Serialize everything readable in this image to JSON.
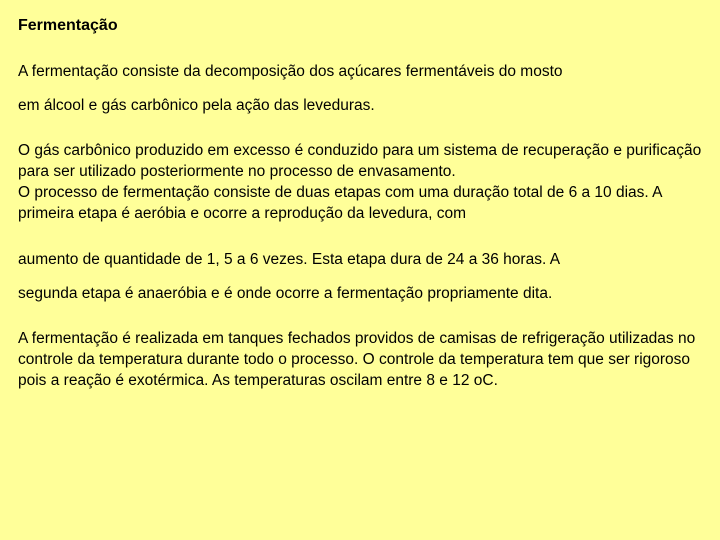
{
  "doc": {
    "background_color": "#ffff99",
    "text_color": "#000000",
    "font_family": "Arial",
    "title_fontsize": 16,
    "body_fontsize": 15.5,
    "title": "Fermentação",
    "paragraphs": [
      "A fermentação consiste da  decomposição dos açúcares fermentáveis do mosto em álcool e gás  carbônico pela ação das leveduras.",
      "O gás carbônico produzido em excesso  é conduzido para um sistema de recuperação e purificação para ser utilizado posteriormente no processo de envasamento.",
      "O processo de fermentação consiste de duas etapas com uma duração total de 6 a 10 dias. A primeira etapa é aeróbia e ocorre a reprodução da levedura, com aumento de quantidade de 1, 5 a 6 vezes. Esta etapa dura de 24 a 36 horas.  A segunda etapa é anaeróbia e é onde ocorre a fermentação propriamente dita.",
      "A fermentação é realizada em tanques fechados providos de camisas de refrigeração utilizadas no controle da temperatura durante todo o processo. O controle da temperatura tem que ser rigoroso pois a reação é exotérmica. As temperaturas oscilam entre 8 e 12 oC."
    ],
    "p1_line1": "A fermentação consiste da  decomposição dos açúcares fermentáveis do mosto",
    "p1_line2": "em álcool e gás  carbônico pela ação das leveduras.",
    "p2a": "O gás carbônico produzido em excesso  é conduzido para um sistema de recuperação e purificação para ser utilizado posteriormente no processo de envasamento.",
    "p2b": "O processo de fermentação consiste de duas etapas com uma duração total de 6 a 10 dias. A primeira etapa é aeróbia e ocorre a reprodução da levedura, com",
    "p3_line1": "aumento de quantidade de 1, 5 a 6 vezes. Esta etapa dura de 24 a 36 horas.  A",
    "p3_line2": "segunda etapa é anaeróbia e é onde ocorre a fermentação propriamente dita.",
    "p4": "A fermentação é realizada em tanques fechados providos de camisas de refrigeração utilizadas no controle da temperatura durante todo o processo. O controle da temperatura tem que ser rigoroso pois a reação é exotérmica. As temperaturas oscilam entre 8 e 12 oC."
  }
}
